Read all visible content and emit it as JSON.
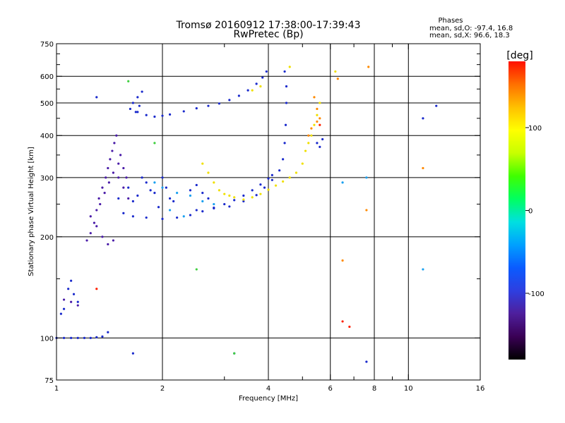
{
  "chart_data": {
    "type": "scatter",
    "title": "Tromsø 20160912 17:38:00-17:39:43",
    "subtitle": "RwPretec (Bp)",
    "xlabel": "Frequency [MHz]",
    "ylabel": "Stationary phase Virtual Height [km]",
    "x_scale": "log",
    "y_scale": "log",
    "xlim": [
      1,
      16
    ],
    "ylim": [
      75,
      750
    ],
    "x_ticks": [
      1,
      2,
      4,
      6,
      8,
      10,
      16
    ],
    "x_tick_labels": [
      "1",
      "2",
      "4",
      "6",
      "8",
      "10",
      "16"
    ],
    "x_grid": [
      2,
      4,
      6,
      8,
      10
    ],
    "x_minor_ticks": [
      3,
      5,
      7,
      9
    ],
    "y_ticks": [
      75,
      100,
      200,
      300,
      400,
      500,
      600,
      750
    ],
    "y_tick_labels": [
      "75",
      "100",
      "200",
      "300",
      "400",
      "500",
      "600",
      "750"
    ],
    "y_grid": [
      100,
      200,
      300,
      400,
      500,
      600
    ],
    "y_minor_ticks": [
      150,
      250,
      350,
      450,
      550,
      650,
      700
    ],
    "grid": true,
    "info": {
      "heading": "Phases",
      "line1": "mean, sd,O: -97.4, 16.8",
      "line2": "mean, sd,X:  96.6, 18.3"
    },
    "colorbar": {
      "label": "[deg]",
      "range": [
        -180,
        180
      ],
      "ticks": [
        100,
        0,
        -100
      ],
      "tick_labels": [
        "100",
        "0",
        "-100"
      ],
      "colormap": [
        "#000000",
        "#3a0055",
        "#4e1f9c",
        "#2e3fe0",
        "#0a5bff",
        "#00a0ff",
        "#00e0e0",
        "#00ff60",
        "#40ff00",
        "#c8ff00",
        "#ffff00",
        "#ffc000",
        "#ff7000",
        "#ff1000"
      ]
    },
    "series": [
      {
        "color": "#1a2acc",
        "points": [
          [
            1.0,
            100
          ],
          [
            1.05,
            100
          ],
          [
            1.1,
            100
          ],
          [
            1.15,
            100
          ],
          [
            1.2,
            100
          ],
          [
            1.25,
            100
          ],
          [
            1.3,
            100.5
          ],
          [
            1.35,
            101
          ],
          [
            1.4,
            104
          ],
          [
            1.3,
            520
          ],
          [
            1.7,
            470
          ],
          [
            1.8,
            460
          ],
          [
            1.9,
            455
          ],
          [
            2.0,
            458
          ],
          [
            2.1,
            462
          ],
          [
            2.3,
            472
          ],
          [
            2.5,
            482
          ],
          [
            2.7,
            490
          ],
          [
            2.9,
            498
          ],
          [
            3.1,
            510
          ],
          [
            3.3,
            525
          ],
          [
            3.5,
            545
          ],
          [
            3.7,
            570
          ],
          [
            3.85,
            595
          ],
          [
            3.95,
            620
          ],
          [
            1.55,
            235
          ],
          [
            1.65,
            230
          ],
          [
            1.8,
            228
          ],
          [
            2.0,
            226
          ],
          [
            2.2,
            228
          ],
          [
            2.4,
            232
          ],
          [
            2.6,
            238
          ],
          [
            2.8,
            244
          ],
          [
            3.0,
            250
          ],
          [
            3.2,
            257
          ],
          [
            3.4,
            265
          ],
          [
            3.6,
            275
          ],
          [
            3.8,
            286
          ],
          [
            4.0,
            298
          ],
          [
            4.1,
            305
          ],
          [
            2.5,
            240
          ],
          [
            2.8,
            243
          ],
          [
            3.1,
            246
          ],
          [
            3.4,
            255
          ],
          [
            3.7,
            266
          ],
          [
            3.9,
            280
          ],
          [
            4.1,
            295
          ],
          [
            4.3,
            315
          ],
          [
            4.4,
            340
          ],
          [
            4.45,
            380
          ],
          [
            4.48,
            430
          ],
          [
            4.5,
            500
          ],
          [
            4.5,
            560
          ],
          [
            4.45,
            620
          ],
          [
            1.62,
            480
          ],
          [
            1.65,
            500
          ],
          [
            1.7,
            520
          ],
          [
            1.75,
            540
          ],
          [
            1.68,
            470
          ],
          [
            1.72,
            490
          ],
          [
            1.5,
            260
          ],
          [
            1.6,
            280
          ],
          [
            1.7,
            265
          ],
          [
            1.8,
            290
          ],
          [
            1.9,
            270
          ],
          [
            2.0,
            300
          ],
          [
            2.05,
            280
          ],
          [
            2.1,
            260
          ],
          [
            1.85,
            275
          ],
          [
            1.95,
            245
          ],
          [
            2.15,
            255
          ],
          [
            1.75,
            300
          ],
          [
            1.65,
            255
          ],
          [
            2.4,
            275
          ],
          [
            2.5,
            285
          ],
          [
            2.6,
            270
          ],
          [
            2.7,
            260
          ],
          [
            1.03,
            118
          ],
          [
            1.05,
            122
          ],
          [
            1.08,
            140
          ],
          [
            1.1,
            148
          ],
          [
            1.12,
            135
          ],
          [
            1.15,
            128
          ],
          [
            5.5,
            380
          ],
          [
            5.6,
            370
          ],
          [
            5.7,
            390
          ],
          [
            1.65,
            90
          ],
          [
            3.2,
            90
          ],
          [
            7.6,
            85
          ],
          [
            11.0,
            450
          ],
          [
            12.0,
            490
          ]
        ]
      },
      {
        "color": "#4a1ca8",
        "points": [
          [
            1.22,
            195
          ],
          [
            1.25,
            205
          ],
          [
            1.28,
            220
          ],
          [
            1.3,
            240
          ],
          [
            1.32,
            260
          ],
          [
            1.35,
            280
          ],
          [
            1.38,
            300
          ],
          [
            1.4,
            320
          ],
          [
            1.42,
            340
          ],
          [
            1.44,
            360
          ],
          [
            1.46,
            380
          ],
          [
            1.48,
            400
          ],
          [
            1.33,
            250
          ],
          [
            1.37,
            270
          ],
          [
            1.41,
            290
          ],
          [
            1.45,
            310
          ],
          [
            1.5,
            300
          ],
          [
            1.55,
            280
          ],
          [
            1.6,
            260
          ],
          [
            1.25,
            230
          ],
          [
            1.3,
            215
          ],
          [
            1.35,
            200
          ],
          [
            1.4,
            190
          ],
          [
            1.45,
            195
          ],
          [
            1.05,
            130
          ],
          [
            1.1,
            128
          ],
          [
            1.15,
            125
          ],
          [
            1.5,
            330
          ],
          [
            1.52,
            350
          ],
          [
            1.55,
            320
          ],
          [
            1.58,
            300
          ]
        ]
      },
      {
        "color": "#19a0f0",
        "points": [
          [
            1.9,
            290
          ],
          [
            2.0,
            280
          ],
          [
            2.2,
            270
          ],
          [
            2.4,
            265
          ],
          [
            2.6,
            255
          ],
          [
            2.8,
            250
          ],
          [
            2.1,
            240
          ],
          [
            2.3,
            230
          ],
          [
            11.0,
            160
          ],
          [
            7.6,
            300
          ],
          [
            6.5,
            290
          ]
        ]
      },
      {
        "color": "#f0e000",
        "points": [
          [
            2.6,
            330
          ],
          [
            2.7,
            310
          ],
          [
            2.8,
            290
          ],
          [
            2.9,
            275
          ],
          [
            3.0,
            268
          ],
          [
            3.1,
            265
          ],
          [
            3.2,
            262
          ],
          [
            3.4,
            258
          ],
          [
            3.6,
            262
          ],
          [
            3.8,
            268
          ],
          [
            4.0,
            276
          ],
          [
            4.2,
            284
          ],
          [
            4.4,
            292
          ],
          [
            4.6,
            300
          ],
          [
            4.8,
            310
          ],
          [
            5.0,
            330
          ],
          [
            5.1,
            360
          ],
          [
            5.2,
            380
          ],
          [
            5.3,
            400
          ],
          [
            5.4,
            430
          ],
          [
            5.5,
            460
          ],
          [
            5.6,
            500
          ],
          [
            3.6,
            545
          ],
          [
            3.8,
            560
          ],
          [
            4.6,
            640
          ],
          [
            6.2,
            620
          ]
        ]
      },
      {
        "color": "#ff8a00",
        "points": [
          [
            5.4,
            520
          ],
          [
            5.5,
            480
          ],
          [
            5.6,
            450
          ],
          [
            5.5,
            440
          ],
          [
            5.3,
            420
          ],
          [
            5.2,
            400
          ],
          [
            6.3,
            590
          ],
          [
            7.7,
            640
          ],
          [
            11.0,
            320
          ],
          [
            7.6,
            240
          ],
          [
            6.5,
            170
          ]
        ]
      },
      {
        "color": "#ff2000",
        "points": [
          [
            1.3,
            140
          ],
          [
            6.8,
            108
          ],
          [
            6.5,
            112
          ],
          [
            5.6,
            430
          ]
        ]
      },
      {
        "color": "#40d040",
        "points": [
          [
            1.6,
            580
          ],
          [
            2.5,
            160
          ],
          [
            1.9,
            380
          ],
          [
            3.2,
            90
          ]
        ]
      }
    ]
  }
}
